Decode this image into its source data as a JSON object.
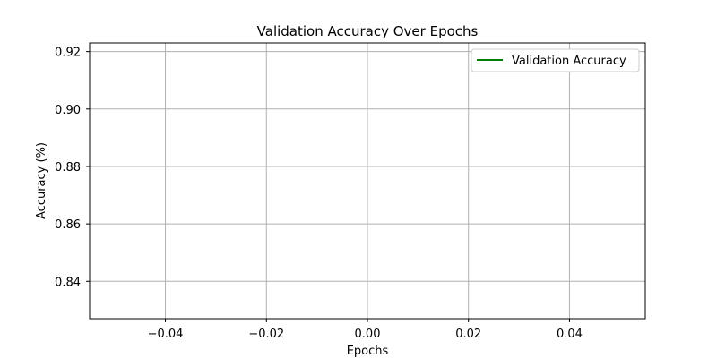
{
  "chart_data": {
    "type": "line",
    "title": "Validation Accuracy Over Epochs",
    "xlabel": "Epochs",
    "ylabel": "Accuracy (%)",
    "xlim": [
      -0.055,
      0.055
    ],
    "ylim": [
      0.827,
      0.923
    ],
    "xticks": [
      -0.04,
      -0.02,
      0.0,
      0.02,
      0.04
    ],
    "xtick_labels": [
      "−0.04",
      "−0.02",
      "0.00",
      "0.02",
      "0.04"
    ],
    "yticks": [
      0.84,
      0.86,
      0.88,
      0.9,
      0.92
    ],
    "ytick_labels": [
      "0.84",
      "0.86",
      "0.88",
      "0.90",
      "0.92"
    ],
    "grid": true,
    "legend_position": "top-right",
    "series": [
      {
        "name": "Validation Accuracy",
        "color": "#008000",
        "x": [],
        "y": []
      }
    ]
  }
}
